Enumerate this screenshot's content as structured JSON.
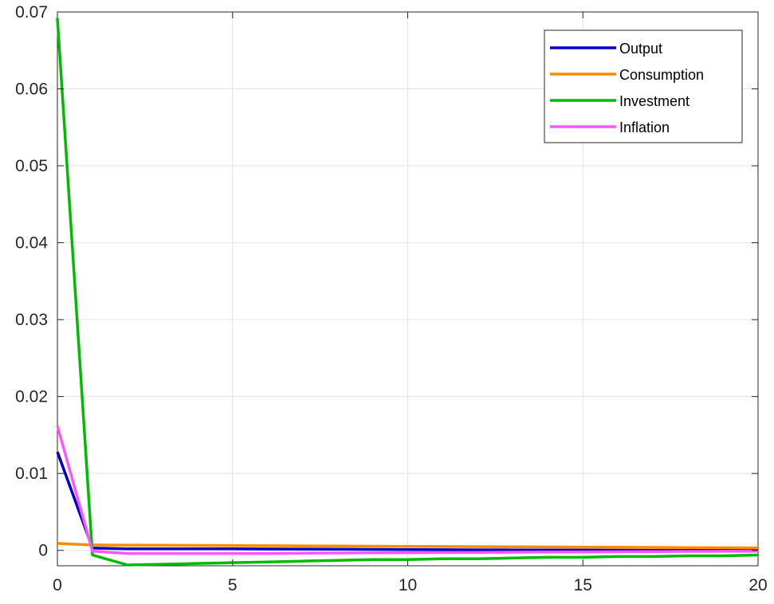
{
  "chart_data": {
    "type": "line",
    "title": "",
    "xlabel": "",
    "ylabel": "",
    "xlim": [
      0,
      20
    ],
    "ylim": [
      -0.002,
      0.07
    ],
    "xticks": [
      0,
      5,
      10,
      15,
      20
    ],
    "yticks": [
      0,
      0.01,
      0.02,
      0.03,
      0.04,
      0.05,
      0.06,
      0.07
    ],
    "xtick_labels": [
      "0",
      "5",
      "10",
      "15",
      "20"
    ],
    "ytick_labels": [
      "0",
      "0.01",
      "0.02",
      "0.03",
      "0.04",
      "0.05",
      "0.06",
      "0.07"
    ],
    "grid": true,
    "legend_position": "top-right",
    "x": [
      0,
      1,
      2,
      3,
      4,
      5,
      6,
      7,
      8,
      9,
      10,
      11,
      12,
      13,
      14,
      15,
      16,
      17,
      18,
      19,
      20
    ],
    "series": [
      {
        "name": "Output",
        "color": "#0000cc",
        "values": [
          0.0128,
          0.0003,
          0.0002,
          0.0002,
          0.0002,
          0.0002,
          0.00018,
          0.00016,
          0.00014,
          0.00012,
          0.0001,
          8e-05,
          6e-05,
          5e-05,
          4e-05,
          3e-05,
          2e-05,
          1e-05,
          0.0,
          -1e-05,
          -2e-05
        ]
      },
      {
        "name": "Consumption",
        "color": "#ff8c00",
        "values": [
          0.0009,
          0.0007,
          0.00068,
          0.00066,
          0.00064,
          0.00062,
          0.0006,
          0.00058,
          0.00056,
          0.00054,
          0.00052,
          0.0005,
          0.00048,
          0.00046,
          0.00044,
          0.00042,
          0.0004,
          0.00038,
          0.00036,
          0.00034,
          0.00032
        ]
      },
      {
        "name": "Investment",
        "color": "#00bb00",
        "values": [
          0.0692,
          -0.0006,
          -0.0019,
          -0.0018,
          -0.0017,
          -0.0016,
          -0.0015,
          -0.0014,
          -0.0013,
          -0.0012,
          -0.0012,
          -0.0011,
          -0.0011,
          -0.001,
          -0.0009,
          -0.0009,
          -0.0008,
          -0.0008,
          -0.0007,
          -0.0007,
          -0.0006
        ]
      },
      {
        "name": "Inflation",
        "color": "#ff55ff",
        "values": [
          0.0162,
          -0.0001,
          -0.0004,
          -0.0004,
          -0.0004,
          -0.0004,
          -0.0004,
          -0.00036,
          -0.00034,
          -0.00032,
          -0.0003,
          -0.00028,
          -0.00026,
          -0.00024,
          -0.00022,
          -0.0002,
          -0.00018,
          -0.00016,
          -0.00014,
          -0.00012,
          -0.0001
        ]
      }
    ]
  }
}
